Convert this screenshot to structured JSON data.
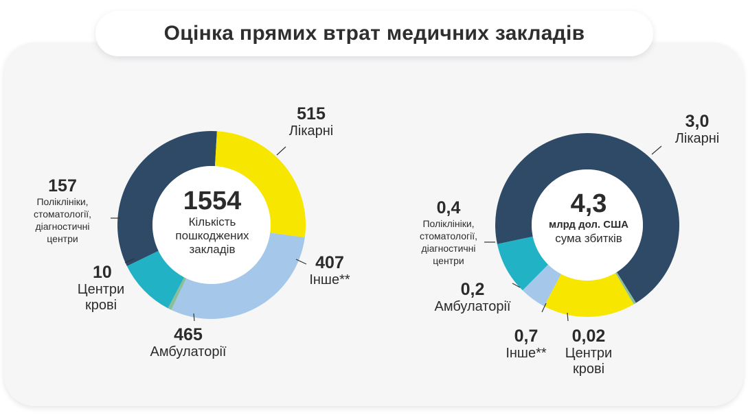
{
  "title": "Оцінка прямих втрат медичних закладів",
  "colors": {
    "Лікарні": "#2e4a66",
    "Інше**": "#f7e600",
    "Амбулаторії": "#a5c8ea",
    "Центри крові": "#8bbf9b",
    "Поліклініки, стоматології, діагностичні центри": "#21b2c6"
  },
  "chart_data": [
    {
      "type": "pie",
      "center": {
        "value": "1554",
        "text": "Кількість пошкоджених закладів"
      },
      "slices": [
        {
          "label": "Лікарні",
          "value": 515,
          "value_text": "515"
        },
        {
          "label": "Інше**",
          "value": 407,
          "value_text": "407"
        },
        {
          "label": "Амбулаторії",
          "value": 465,
          "value_text": "465"
        },
        {
          "label": "Центри крові",
          "value": 10,
          "value_text": "10"
        },
        {
          "label": "Поліклініки, стоматології, діагностичні центри",
          "value": 157,
          "value_text": "157"
        }
      ]
    },
    {
      "type": "pie",
      "center": {
        "value": "4,3",
        "unit": "млрд дол. США",
        "text": "сума збитків"
      },
      "slices": [
        {
          "label": "Лікарні",
          "value": 3.0,
          "value_text": "3,0"
        },
        {
          "label": "Центри крові",
          "value": 0.02,
          "value_text": "0,02"
        },
        {
          "label": "Інше**",
          "value": 0.7,
          "value_text": "0,7"
        },
        {
          "label": "Амбулаторії",
          "value": 0.2,
          "value_text": "0,2"
        },
        {
          "label": "Поліклініки, стоматології, діагностичні центри",
          "value": 0.4,
          "value_text": "0,4"
        }
      ]
    }
  ],
  "labels": {
    "left": {
      "hospitals": {
        "value": "515",
        "name": "Лікарні"
      },
      "other": {
        "value": "407",
        "name": "Інше**"
      },
      "ambulatory": {
        "value": "465",
        "name": "Амбулаторії"
      },
      "blood": {
        "value": "10",
        "name1": "Центри",
        "name2": "крові"
      },
      "clinics": {
        "value": "157",
        "name1": "Поліклініки,",
        "name2": "стоматології,",
        "name3": "діагностичні",
        "name4": "центри"
      }
    },
    "right": {
      "hospitals": {
        "value": "3,0",
        "name": "Лікарні"
      },
      "clinics": {
        "value": "0,4",
        "name1": "Поліклініки,",
        "name2": "стоматології,",
        "name3": "діагностичні",
        "name4": "центри"
      },
      "ambulatory": {
        "value": "0,2",
        "name": "Амбулаторії"
      },
      "other": {
        "value": "0,7",
        "name": "Інше**"
      },
      "blood": {
        "value": "0,02",
        "name1": "Центри",
        "name2": "крові"
      }
    }
  }
}
